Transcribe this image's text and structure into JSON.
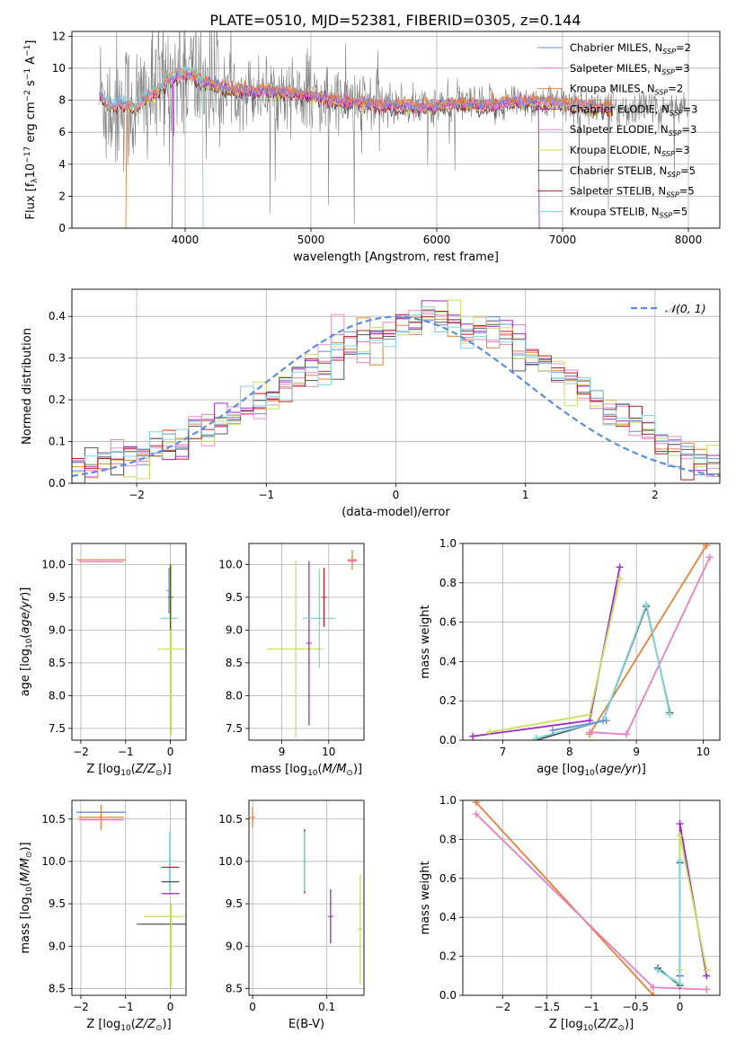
{
  "figure_title": "PLATE=0510, MJD=52381, FIBERID=0305, z=0.144",
  "colors": {
    "chabrier_miles": "#6b8fd8",
    "salpeter_miles": "#e87fc4",
    "kroupa_miles": "#e8803a",
    "chabrier_elodie": "#a12ac7",
    "salpeter_elodie": "#e890c8",
    "kroupa_elodie": "#c7e05a",
    "chabrier_stelib": "#555555",
    "salpeter_stelib": "#b22222",
    "kroupa_stelib": "#7dd8dc",
    "data_spectrum": "#808080",
    "normal_curve": "#5b8ee0",
    "grid": "#b0b0b0"
  },
  "chart_data": [
    {
      "id": "spectrum",
      "type": "line",
      "title": "PLATE=0510, MJD=52381, FIBERID=0305, z=0.144",
      "xlabel": "wavelength [Angstrom, rest frame]",
      "ylabel": "Flux [f_λ 10^-17 erg cm^-2 s^-1 A^-1]",
      "xlim": [
        3100,
        8250
      ],
      "ylim": [
        0,
        12.3
      ],
      "xticks": [
        4000,
        5000,
        6000,
        7000,
        8000
      ],
      "yticks": [
        0,
        2,
        4,
        6,
        8,
        10,
        12
      ],
      "legend_position": "top-right",
      "legend": [
        {
          "label": "Chabrier MILES, N",
          "sub": "SSP",
          "eq": "=2",
          "color_key": "chabrier_miles"
        },
        {
          "label": "Salpeter MILES, N",
          "sub": "SSP",
          "eq": "=3",
          "color_key": "salpeter_miles"
        },
        {
          "label": "Kroupa MILES, N",
          "sub": "SSP",
          "eq": "=2",
          "color_key": "kroupa_miles"
        },
        {
          "label": "Chabrier ELODIE, N",
          "sub": "SSP",
          "eq": "=3",
          "color_key": "chabrier_elodie"
        },
        {
          "label": "Salpeter ELODIE, N",
          "sub": "SSP",
          "eq": "=3",
          "color_key": "salpeter_elodie"
        },
        {
          "label": "Kroupa ELODIE, N",
          "sub": "SSP",
          "eq": "=3",
          "color_key": "kroupa_elodie"
        },
        {
          "label": "Chabrier STELIB, N",
          "sub": "SSP",
          "eq": "=5",
          "color_key": "chabrier_stelib"
        },
        {
          "label": "Salpeter STELIB, N",
          "sub": "SSP",
          "eq": "=5",
          "color_key": "salpeter_stelib"
        },
        {
          "label": "Kroupa STELIB, N",
          "sub": "SSP",
          "eq": "=5",
          "color_key": "kroupa_stelib"
        }
      ],
      "model_continuum": {
        "x": [
          3320,
          3400,
          3500,
          3600,
          3700,
          3800,
          3900,
          4000,
          4100,
          4200,
          4300,
          4400,
          4500,
          4600,
          4800,
          5000,
          5200,
          5400,
          5600,
          5800,
          6000,
          6200,
          6400,
          6600,
          6800,
          7000,
          7200,
          7400
        ],
        "y": [
          8.4,
          7.6,
          7.9,
          7.5,
          8.2,
          8.7,
          9.4,
          9.7,
          9.3,
          9.0,
          8.8,
          8.7,
          8.6,
          8.6,
          8.5,
          8.3,
          8.0,
          7.8,
          7.7,
          7.6,
          7.6,
          7.8,
          7.6,
          7.9,
          7.9,
          7.8,
          7.6,
          7.5
        ]
      },
      "series_ranges": [
        {
          "color_key": "kroupa_miles",
          "x": [
            3530,
            7400
          ]
        },
        {
          "color_key": "chabrier_elodie",
          "x": [
            3900,
            6810
          ]
        },
        {
          "color_key": "kroupa_stelib",
          "x": [
            3320,
            4140
          ]
        }
      ]
    },
    {
      "id": "residuals",
      "type": "histogram",
      "xlabel": "(data-model)/error",
      "ylabel": "Normed distribution",
      "xlim": [
        -2.5,
        2.5
      ],
      "ylim": [
        0,
        0.465
      ],
      "xticks": [
        -2,
        -1,
        0,
        1,
        2
      ],
      "yticks": [
        0.0,
        0.1,
        0.2,
        0.3,
        0.4
      ],
      "legend_position": "top-right",
      "legend": [
        {
          "label": "𝒩(0, 1)",
          "color_key": "normal_curve"
        }
      ],
      "bin_width": 0.1,
      "bin_start": -2.5,
      "mean_heights": [
        0.05,
        0.05,
        0.055,
        0.06,
        0.065,
        0.07,
        0.08,
        0.09,
        0.1,
        0.12,
        0.13,
        0.14,
        0.16,
        0.175,
        0.19,
        0.21,
        0.23,
        0.25,
        0.27,
        0.29,
        0.31,
        0.33,
        0.34,
        0.35,
        0.36,
        0.375,
        0.39,
        0.405,
        0.4,
        0.39,
        0.35,
        0.37,
        0.36,
        0.35,
        0.33,
        0.31,
        0.29,
        0.26,
        0.24,
        0.22,
        0.2,
        0.18,
        0.16,
        0.14,
        0.12,
        0.1,
        0.085,
        0.07,
        0.055,
        0.04
      ]
    },
    {
      "id": "age_vs_Z",
      "type": "scatter",
      "xlabel": "Z [log10(Z/Z⊙)]",
      "ylabel": "age [log10(age/yr)]",
      "xlim": [
        -2.2,
        0.35
      ],
      "ylim": [
        7.32,
        10.32
      ],
      "xticks": [
        -2,
        -1,
        0
      ],
      "yticks": [
        7.5,
        8.0,
        8.5,
        9.0,
        9.5,
        10.0
      ],
      "points": [
        {
          "x": -1.55,
          "y": 10.07,
          "xerr": 0.55,
          "yerr": 0.0,
          "color_key": "kroupa_miles"
        },
        {
          "x": -1.55,
          "y": 10.04,
          "xerr": 0.5,
          "yerr": 0.0,
          "color_key": "salpeter_miles"
        },
        {
          "x": -0.03,
          "y": 9.6,
          "xerr": 0.0,
          "yerr": 0.35,
          "color_key": "chabrier_miles"
        },
        {
          "x": -0.03,
          "y": 9.18,
          "xerr": 0.2,
          "yerr": 0.0,
          "color_key": "kroupa_stelib"
        },
        {
          "x": 0.02,
          "y": 8.71,
          "xerr": 0.3,
          "yerr": 1.3,
          "color_key": "kroupa_elodie"
        },
        {
          "x": 0.0,
          "y": 9.5,
          "xerr": 0.0,
          "yerr": 0.5,
          "color_key": "chabrier_stelib"
        }
      ]
    },
    {
      "id": "age_vs_mass",
      "type": "scatter",
      "xlabel": "mass [log10(M/M⊙)]",
      "ylabel": "",
      "xlim": [
        8.3,
        10.75
      ],
      "ylim": [
        7.32,
        10.32
      ],
      "xticks": [
        9,
        10
      ],
      "yticks": [
        7.5,
        8.0,
        8.5,
        9.0,
        9.5,
        10.0
      ],
      "points": [
        {
          "x": 10.5,
          "y": 10.07,
          "xerr": 0.1,
          "yerr": 0.15,
          "color_key": "kroupa_miles"
        },
        {
          "x": 10.5,
          "y": 10.05,
          "xerr": 0.1,
          "yerr": 0.0,
          "color_key": "salpeter_miles"
        },
        {
          "x": 9.3,
          "y": 8.71,
          "xerr": 0.6,
          "yerr": 1.35,
          "color_key": "kroupa_elodie"
        },
        {
          "x": 9.58,
          "y": 8.8,
          "xerr": 0.0,
          "yerr": 1.25,
          "color_key": "chabrier_elodie"
        },
        {
          "x": 9.8,
          "y": 9.18,
          "xerr": 0.35,
          "yerr": 0.75,
          "color_key": "kroupa_stelib"
        },
        {
          "x": 9.9,
          "y": 9.5,
          "xerr": 0.0,
          "yerr": 0.45,
          "color_key": "salpeter_stelib"
        }
      ]
    },
    {
      "id": "weight_vs_age",
      "type": "line",
      "xlabel": "age [log10(age/yr)]",
      "ylabel": "mass weight",
      "xlim": [
        6.4,
        10.25
      ],
      "ylim": [
        0,
        1
      ],
      "xticks": [
        7,
        8,
        9,
        10
      ],
      "yticks": [
        0.0,
        0.2,
        0.4,
        0.6,
        0.8,
        1.0
      ],
      "series": [
        {
          "color_key": "kroupa_miles",
          "x": [
            8.3,
            10.05
          ],
          "y": [
            0.03,
            0.99
          ]
        },
        {
          "color_key": "salpeter_miles",
          "x": [
            8.3,
            8.85,
            10.1
          ],
          "y": [
            0.04,
            0.03,
            0.93
          ]
        },
        {
          "color_key": "chabrier_elodie",
          "x": [
            6.55,
            8.3,
            8.75
          ],
          "y": [
            0.02,
            0.1,
            0.88
          ]
        },
        {
          "color_key": "kroupa_elodie",
          "x": [
            6.8,
            8.3,
            8.75
          ],
          "y": [
            0.04,
            0.13,
            0.82
          ]
        },
        {
          "color_key": "chabrier_stelib",
          "x": [
            7.5,
            8.5,
            9.15,
            9.5
          ],
          "y": [
            0.0,
            0.1,
            0.68,
            0.14
          ]
        },
        {
          "color_key": "kroupa_stelib",
          "x": [
            7.5,
            8.5,
            9.15,
            9.5
          ],
          "y": [
            0.01,
            0.1,
            0.69,
            0.13
          ]
        },
        {
          "color_key": "chabrier_miles",
          "x": [
            7.75,
            8.55
          ],
          "y": [
            0.05,
            0.1
          ]
        }
      ]
    },
    {
      "id": "mass_vs_Z",
      "type": "scatter",
      "xlabel": "Z [log10(Z/Z⊙)]",
      "ylabel": "mass [log10(M/M⊙)]",
      "xlim": [
        -2.2,
        0.35
      ],
      "ylim": [
        8.42,
        10.72
      ],
      "xticks": [
        -2,
        -1,
        0
      ],
      "yticks": [
        8.5,
        9.0,
        9.5,
        10.0,
        10.5
      ],
      "points": [
        {
          "x": -1.55,
          "y": 10.58,
          "xerr": 0.55,
          "yerr": 0.0,
          "color_key": "chabrier_miles"
        },
        {
          "x": -1.55,
          "y": 10.52,
          "xerr": 0.5,
          "yerr": 0.15,
          "color_key": "kroupa_miles"
        },
        {
          "x": -1.55,
          "y": 10.49,
          "xerr": 0.5,
          "yerr": 0.0,
          "color_key": "salpeter_miles"
        },
        {
          "x": -0.02,
          "y": 10.0,
          "xerr": 0.0,
          "yerr": 0.35,
          "color_key": "kroupa_stelib"
        },
        {
          "x": 0.0,
          "y": 9.93,
          "xerr": 0.2,
          "yerr": 0.0,
          "color_key": "salpeter_stelib"
        },
        {
          "x": 0.0,
          "y": 9.76,
          "xerr": 0.2,
          "yerr": 0.0,
          "color_key": "chabrier_stelib"
        },
        {
          "x": 0.0,
          "y": 9.62,
          "xerr": 0.2,
          "yerr": 0.0,
          "color_key": "chabrier_elodie"
        },
        {
          "x": -0.1,
          "y": 9.35,
          "xerr": 0.5,
          "yerr": 0.0,
          "color_key": "kroupa_elodie"
        },
        {
          "x": -0.2,
          "y": 9.26,
          "xerr": 0.55,
          "yerr": 0.0,
          "color_key": "chabrier_stelib"
        },
        {
          "x": 0.02,
          "y": 9.0,
          "xerr": 0.0,
          "yerr": 0.5,
          "color_key": "kroupa_elodie"
        }
      ]
    },
    {
      "id": "mass_vs_EBV",
      "type": "scatter",
      "xlabel": "E(B-V)",
      "ylabel": "",
      "xlim": [
        -0.005,
        0.15
      ],
      "ylim": [
        8.42,
        10.72
      ],
      "xticks": [
        0.0,
        0.1
      ],
      "yticks": [
        8.5,
        9.0,
        9.5,
        10.0,
        10.5
      ],
      "points": [
        {
          "x": 0.0,
          "y": 10.52,
          "xerr": 0.0,
          "yerr": 0.12,
          "color_key": "kroupa_miles"
        },
        {
          "x": 0.07,
          "y": 10.0,
          "xerr": 0.0,
          "yerr": 0.38,
          "color_key": "salpeter_stelib"
        },
        {
          "x": 0.07,
          "y": 10.0,
          "xerr": 0.0,
          "yerr": 0.35,
          "color_key": "kroupa_stelib"
        },
        {
          "x": 0.105,
          "y": 9.35,
          "xerr": 0.0,
          "yerr": 0.32,
          "color_key": "chabrier_elodie"
        },
        {
          "x": 0.145,
          "y": 9.2,
          "xerr": 0.0,
          "yerr": 0.65,
          "color_key": "kroupa_elodie"
        }
      ]
    },
    {
      "id": "weight_vs_Z",
      "type": "line",
      "xlabel": "Z [log10(Z/Z⊙)]",
      "ylabel": "mass weight",
      "xlim": [
        -2.45,
        0.45
      ],
      "ylim": [
        0,
        1
      ],
      "xticks": [
        -2.0,
        -1.5,
        -1.0,
        -0.5,
        0.0
      ],
      "yticks": [
        0.0,
        0.2,
        0.4,
        0.6,
        0.8,
        1.0
      ],
      "series": [
        {
          "color_key": "kroupa_miles",
          "x": [
            -2.3,
            -0.3
          ],
          "y": [
            0.99,
            0.0
          ]
        },
        {
          "color_key": "salpeter_miles",
          "x": [
            -2.3,
            -0.3,
            0.3
          ],
          "y": [
            0.93,
            0.04,
            0.03
          ]
        },
        {
          "color_key": "chabrier_elodie",
          "x": [
            0.0,
            0.0,
            0.3
          ],
          "y": [
            0.1,
            0.88,
            0.1
          ]
        },
        {
          "color_key": "kroupa_elodie",
          "x": [
            0.0,
            0.0,
            0.3
          ],
          "y": [
            0.13,
            0.82,
            0.13
          ]
        },
        {
          "color_key": "chabrier_stelib",
          "x": [
            -0.25,
            0.0,
            0.0
          ],
          "y": [
            0.14,
            0.05,
            0.68
          ]
        },
        {
          "color_key": "kroupa_stelib",
          "x": [
            -0.25,
            0.0,
            0.0
          ],
          "y": [
            0.13,
            0.06,
            0.69
          ]
        }
      ]
    }
  ]
}
